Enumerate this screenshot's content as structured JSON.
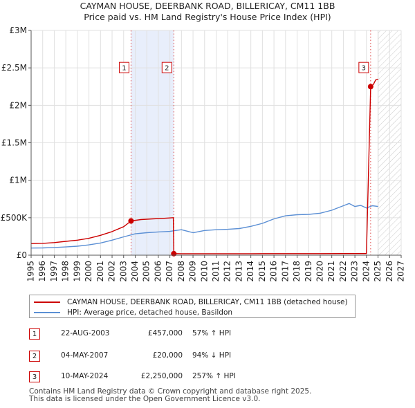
{
  "chart_data": {
    "type": "line",
    "title": "CAYMAN HOUSE, DEERBANK ROAD, BILLERICAY, CM11 1BB",
    "subtitle": "Price paid vs. HM Land Registry's House Price Index (HPI)",
    "xlim": [
      1995,
      2027
    ],
    "ylim": [
      0,
      3000000
    ],
    "x_ticks": [
      1995,
      1996,
      1997,
      1998,
      1999,
      2000,
      2001,
      2002,
      2003,
      2004,
      2005,
      2006,
      2007,
      2008,
      2009,
      2010,
      2011,
      2012,
      2013,
      2014,
      2015,
      2016,
      2017,
      2018,
      2019,
      2020,
      2021,
      2022,
      2023,
      2024,
      2025,
      2026,
      2027
    ],
    "y_ticks": [
      {
        "value": 0,
        "label": "£0"
      },
      {
        "value": 500000,
        "label": "£500K"
      },
      {
        "value": 1000000,
        "label": "£1M"
      },
      {
        "value": 1500000,
        "label": "£1.5M"
      },
      {
        "value": 2000000,
        "label": "£2M"
      },
      {
        "value": 2500000,
        "label": "£2.5M"
      },
      {
        "value": 3000000,
        "label": "£3M"
      }
    ],
    "shaded_span": [
      2003.64,
      2007.34
    ],
    "future_hatch_from": 2025.0,
    "series": [
      {
        "name": "CAYMAN HOUSE, DEERBANK ROAD, BILLERICAY, CM11 1BB (detached house)",
        "color": "#cc0000",
        "x": [
          1995.0,
          1996.0,
          1997.0,
          1998.0,
          1999.0,
          2000.0,
          2001.0,
          2002.0,
          2003.0,
          2003.64,
          2004.5,
          2005.5,
          2006.5,
          2007.3,
          2007.34,
          2008.0,
          2010.0,
          2012.0,
          2014.0,
          2016.0,
          2018.0,
          2020.0,
          2022.0,
          2024.0,
          2024.36,
          2024.6,
          2024.8,
          2025.0
        ],
        "values": [
          155000,
          158000,
          168000,
          185000,
          200000,
          225000,
          265000,
          315000,
          380000,
          457000,
          475000,
          485000,
          492000,
          500000,
          20000,
          19500,
          19000,
          19000,
          19500,
          20000,
          20500,
          20500,
          21000,
          21000,
          2250000,
          2280000,
          2340000,
          2350000
        ]
      },
      {
        "name": "HPI: Average price, detached house, Basildon",
        "color": "#5b8fd4",
        "x": [
          1995.0,
          1996.0,
          1997.0,
          1998.0,
          1999.0,
          2000.0,
          2001.0,
          2002.0,
          2003.0,
          2004.0,
          2005.0,
          2006.0,
          2007.0,
          2007.5,
          2008.0,
          2008.5,
          2009.0,
          2010.0,
          2011.0,
          2012.0,
          2013.0,
          2014.0,
          2015.0,
          2016.0,
          2017.0,
          2018.0,
          2019.0,
          2020.0,
          2021.0,
          2022.0,
          2022.5,
          2023.0,
          2023.5,
          2024.0,
          2024.5,
          2025.0
        ],
        "values": [
          95000,
          97000,
          102000,
          110000,
          120000,
          138000,
          162000,
          200000,
          245000,
          285000,
          300000,
          310000,
          318000,
          330000,
          340000,
          320000,
          300000,
          330000,
          340000,
          345000,
          355000,
          385000,
          425000,
          485000,
          525000,
          540000,
          545000,
          560000,
          600000,
          660000,
          690000,
          650000,
          665000,
          630000,
          660000,
          650000
        ]
      }
    ],
    "transactions": [
      {
        "label": "1",
        "x": 2003.64,
        "value": 457000,
        "date": "22-AUG-2003",
        "price": "£457,000",
        "change": "57% ↑ HPI"
      },
      {
        "label": "2",
        "x": 2007.34,
        "value": 20000,
        "date": "04-MAY-2007",
        "price": "£20,000",
        "change": "94% ↓ HPI"
      },
      {
        "label": "3",
        "x": 2024.36,
        "value": 2250000,
        "date": "10-MAY-2024",
        "price": "£2,250,000",
        "change": "257% ↑ HPI"
      }
    ],
    "marker_label_value": 2500000
  },
  "legend": {
    "property": "CAYMAN HOUSE, DEERBANK ROAD, BILLERICAY, CM11 1BB (detached house)",
    "hpi": "HPI: Average price, detached house, Basildon",
    "property_color": "#cc0000",
    "hpi_color": "#5b8fd4"
  },
  "footer": {
    "line1": "Contains HM Land Registry data © Crown copyright and database right 2025.",
    "line2": "This data is licensed under the Open Government Licence v3.0."
  }
}
